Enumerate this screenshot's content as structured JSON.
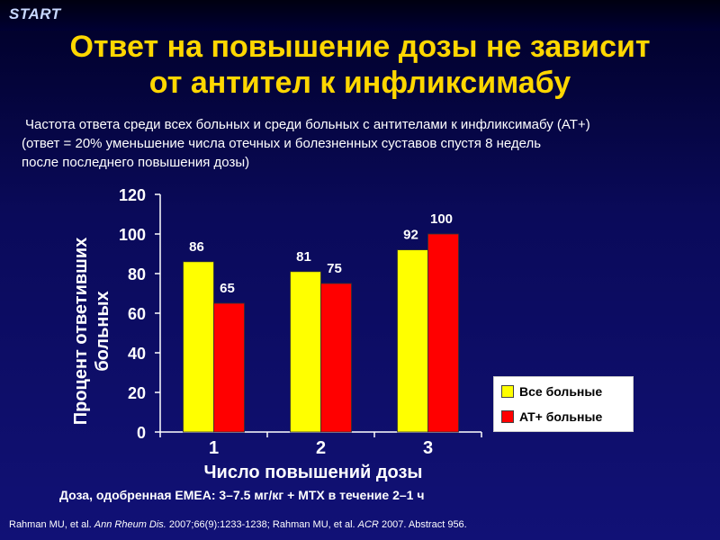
{
  "header": {
    "logo_text": "START",
    "title_line1": "Ответ на повышение дозы не зависит",
    "title_line2": "от антител к инфликсимабу",
    "subtitle_line1": "Частота ответа среди всех больных и среди больных с антителами к инфликсимабу (AT+)",
    "subtitle_line2": "(ответ = 20% уменьшение числа отечных и болезненных суставов спустя 8 недель",
    "subtitle_line3": "после последнего повышения дозы)"
  },
  "footnote": "Доза, одобренная ЕМЕА: 3–7.5 мг/кг + МТХ в течение 2–1 ч",
  "citation": {
    "part1": "Rahman MU, et al. ",
    "journal1": "Ann Rheum Dis.",
    "part2": " 2007;66(9):1233-1238;  Rahman MU, et al. ",
    "journal2": "ACR",
    "part3": " 2007. Abstract 956."
  },
  "colors": {
    "all_patients": "#ffff00",
    "at_plus": "#ff0000",
    "title": "#ffd700",
    "axis": "#ffffff"
  },
  "chart_data": {
    "type": "bar",
    "categories": [
      "1",
      "2",
      "3"
    ],
    "series": [
      {
        "name": "Все больные",
        "values": [
          86,
          81,
          92
        ],
        "color": "#ffff00"
      },
      {
        "name": "AT+ больные",
        "values": [
          65,
          75,
          100
        ],
        "color": "#ff0000"
      }
    ],
    "xlabel": "Число повышений дозы",
    "ylabel_line1": "Процент ответивших",
    "ylabel_line2": "больных",
    "ylim": [
      0,
      120
    ],
    "yticks": [
      "0",
      "20",
      "40",
      "60",
      "80",
      "100",
      "120"
    ],
    "grid": false,
    "legend_position": "bottom-right"
  }
}
